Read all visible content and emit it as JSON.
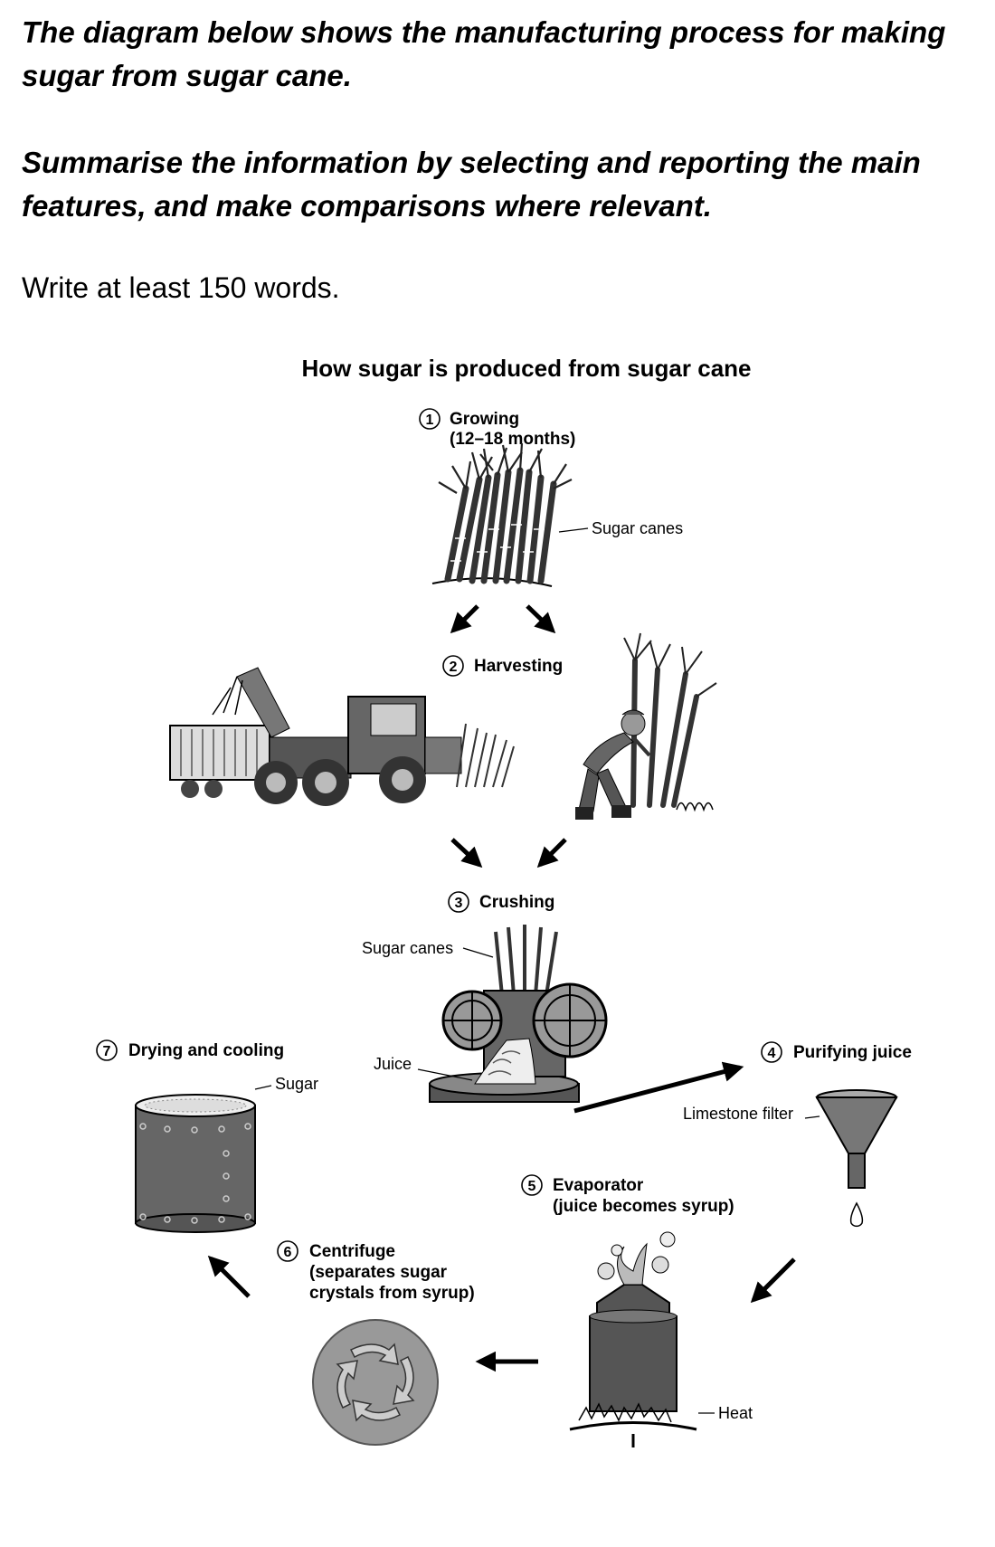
{
  "prompt": {
    "line1": "The diagram below shows the manufacturing process for making sugar from sugar cane.",
    "line2": "Summarise the information by selecting and reporting the main features, and make comparisons where relevant.",
    "line3": "Write at least 150 words."
  },
  "diagram": {
    "title": "How sugar is produced from sugar cane",
    "steps": [
      {
        "num": "1",
        "label": "Growing",
        "sub": [
          "(12–18 months)"
        ]
      },
      {
        "num": "2",
        "label": "Harvesting",
        "sub": []
      },
      {
        "num": "3",
        "label": "Crushing",
        "sub": []
      },
      {
        "num": "4",
        "label": "Purifying juice",
        "sub": []
      },
      {
        "num": "5",
        "label": "Evaporator",
        "sub": [
          "(juice becomes syrup)"
        ]
      },
      {
        "num": "6",
        "label": "Centrifuge",
        "sub": [
          "(separates sugar",
          "crystals from syrup)"
        ]
      },
      {
        "num": "7",
        "label": "Drying and cooling",
        "sub": []
      }
    ],
    "callouts": {
      "sugar_canes_1": "Sugar canes",
      "sugar_canes_2": "Sugar canes",
      "juice": "Juice",
      "limestone": "Limestone filter",
      "sugar": "Sugar",
      "heat": "Heat"
    }
  }
}
